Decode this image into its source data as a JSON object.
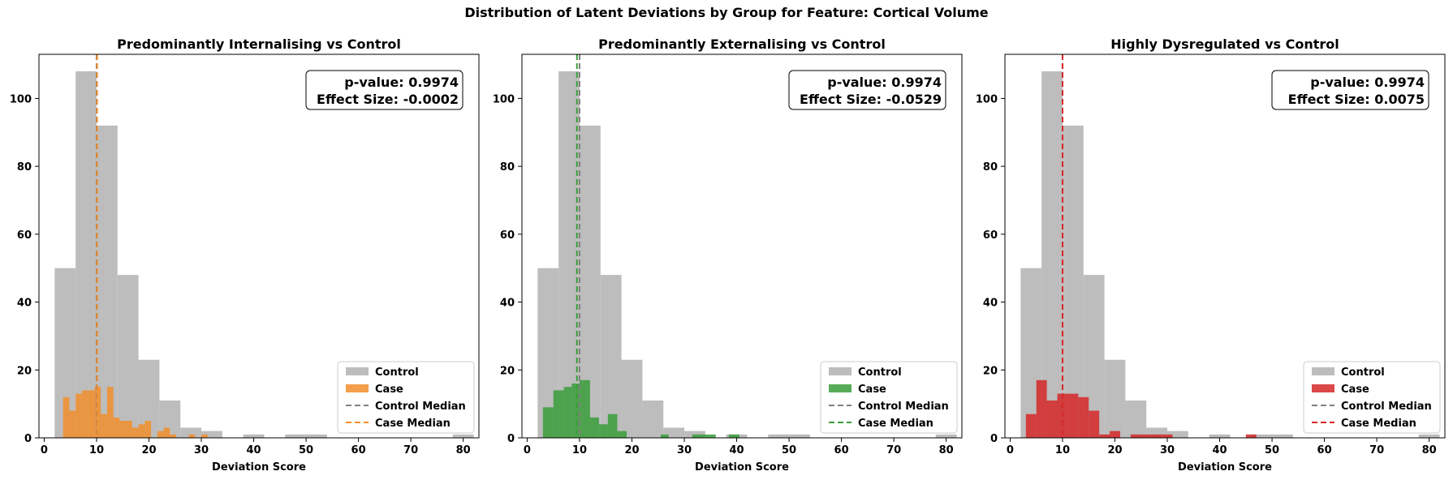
{
  "figure": {
    "suptitle": "Distribution of Latent Deviations by Group for Feature: Cortical Volume",
    "control_color": "#bdbdbd",
    "median_line_color": "#808080"
  },
  "chart_data": [
    {
      "type": "histogram",
      "title": "Predominantly Internalising vs Control",
      "xlabel": "Deviation Score",
      "ylabel": "",
      "xlim": [
        -1,
        83
      ],
      "ylim": [
        0,
        113
      ],
      "xticks": [
        0,
        10,
        20,
        30,
        40,
        50,
        60,
        70,
        80
      ],
      "yticks": [
        0,
        20,
        40,
        60,
        80,
        100
      ],
      "case_color": "#f28e2b",
      "median_color": "#f28e2b",
      "series": [
        {
          "name": "Control",
          "bins": [
            [
              2,
              6,
              50
            ],
            [
              6,
              10,
              108
            ],
            [
              10,
              14,
              92
            ],
            [
              14,
              18,
              48
            ],
            [
              18,
              22,
              23
            ],
            [
              22,
              26,
              11
            ],
            [
              26,
              30,
              3
            ],
            [
              30,
              34,
              2
            ],
            [
              38,
              42,
              1
            ],
            [
              46,
              54,
              1
            ],
            [
              78,
              82,
              1
            ]
          ]
        },
        {
          "name": "Case",
          "bins": [
            [
              3.6,
              4.8,
              12
            ],
            [
              4.8,
              6,
              8
            ],
            [
              6,
              7.2,
              13
            ],
            [
              7.2,
              8.4,
              14
            ],
            [
              8.4,
              9.6,
              14
            ],
            [
              9.6,
              10.8,
              15
            ],
            [
              10.8,
              12,
              7
            ],
            [
              12,
              13.2,
              15
            ],
            [
              13.2,
              14.4,
              6
            ],
            [
              14.4,
              15.6,
              5
            ],
            [
              15.6,
              16.8,
              5
            ],
            [
              16.8,
              18,
              3
            ],
            [
              18,
              19.2,
              4
            ],
            [
              19.2,
              20.4,
              5
            ],
            [
              21.6,
              22.8,
              2
            ],
            [
              22.8,
              24,
              3
            ],
            [
              24,
              25.2,
              1
            ],
            [
              27.6,
              28.8,
              1
            ],
            [
              30,
              31.2,
              1
            ]
          ]
        }
      ],
      "medians": {
        "control": 10.0,
        "case": 10.1
      },
      "stats": {
        "p_value": "p-value: 0.9974",
        "effect_size": "Effect Size: -0.0002"
      },
      "legend": {
        "position": "lower right",
        "entries": [
          "Control",
          "Case",
          "Control Median",
          "Case Median"
        ]
      }
    },
    {
      "type": "histogram",
      "title": "Predominantly Externalising vs Control",
      "xlabel": "Deviation Score",
      "ylabel": "",
      "xlim": [
        -1,
        83
      ],
      "ylim": [
        0,
        113
      ],
      "xticks": [
        0,
        10,
        20,
        30,
        40,
        50,
        60,
        70,
        80
      ],
      "yticks": [
        0,
        20,
        40,
        60,
        80,
        100
      ],
      "case_color": "#3a9e3a",
      "median_color": "#3a9e3a",
      "series": [
        {
          "name": "Control",
          "bins": [
            [
              2,
              6,
              50
            ],
            [
              6,
              10,
              108
            ],
            [
              10,
              14,
              92
            ],
            [
              14,
              18,
              48
            ],
            [
              18,
              22,
              23
            ],
            [
              22,
              26,
              11
            ],
            [
              26,
              30,
              3
            ],
            [
              30,
              34,
              2
            ],
            [
              38,
              42,
              1
            ],
            [
              46,
              54,
              1
            ],
            [
              78,
              82,
              1
            ]
          ]
        },
        {
          "name": "Case",
          "bins": [
            [
              3,
              5,
              9
            ],
            [
              5,
              7,
              14
            ],
            [
              7,
              8.5,
              15
            ],
            [
              8.5,
              10,
              16
            ],
            [
              10,
              12,
              17
            ],
            [
              12,
              13.7,
              6
            ],
            [
              13.7,
              15.4,
              4
            ],
            [
              15.4,
              17.2,
              7
            ],
            [
              17.2,
              19,
              2
            ],
            [
              25.5,
              27,
              1
            ],
            [
              31.5,
              34,
              1
            ],
            [
              34,
              36,
              1
            ],
            [
              38.5,
              40.5,
              1
            ]
          ]
        }
      ],
      "medians": {
        "control": 10.0,
        "case": 9.5
      },
      "stats": {
        "p_value": "p-value: 0.9974",
        "effect_size": "Effect Size: -0.0529"
      },
      "legend": {
        "position": "lower right",
        "entries": [
          "Control",
          "Case",
          "Control Median",
          "Case Median"
        ]
      }
    },
    {
      "type": "histogram",
      "title": "Highly Dysregulated vs Control",
      "xlabel": "Deviation Score",
      "ylabel": "",
      "xlim": [
        -1,
        83
      ],
      "ylim": [
        0,
        113
      ],
      "xticks": [
        0,
        10,
        20,
        30,
        40,
        50,
        60,
        70,
        80
      ],
      "yticks": [
        0,
        20,
        40,
        60,
        80,
        100
      ],
      "case_color": "#d62728",
      "median_color": "#d62728",
      "series": [
        {
          "name": "Control",
          "bins": [
            [
              2,
              6,
              50
            ],
            [
              6,
              10,
              108
            ],
            [
              10,
              14,
              92
            ],
            [
              14,
              18,
              48
            ],
            [
              18,
              22,
              23
            ],
            [
              22,
              26,
              11
            ],
            [
              26,
              30,
              3
            ],
            [
              30,
              34,
              2
            ],
            [
              38,
              42,
              1
            ],
            [
              46,
              54,
              1
            ],
            [
              78,
              82,
              1
            ]
          ]
        },
        {
          "name": "Case",
          "bins": [
            [
              3,
              5,
              7
            ],
            [
              5,
              7,
              17
            ],
            [
              7,
              9,
              11
            ],
            [
              9,
              11,
              13
            ],
            [
              11,
              13,
              13
            ],
            [
              13,
              15,
              12
            ],
            [
              15,
              17,
              8
            ],
            [
              17,
              19,
              1
            ],
            [
              19,
              21,
              2
            ],
            [
              21,
              23,
              0
            ],
            [
              23,
              25,
              1
            ],
            [
              25,
              27,
              1
            ],
            [
              27,
              29,
              1
            ],
            [
              29,
              31,
              1
            ],
            [
              45,
              47,
              1
            ]
          ]
        }
      ],
      "medians": {
        "control": 10.0,
        "case": 10.0
      },
      "stats": {
        "p_value": "p-value: 0.9974",
        "effect_size": "Effect Size: 0.0075"
      },
      "legend": {
        "position": "lower right",
        "entries": [
          "Control",
          "Case",
          "Control Median",
          "Case Median"
        ]
      }
    }
  ]
}
